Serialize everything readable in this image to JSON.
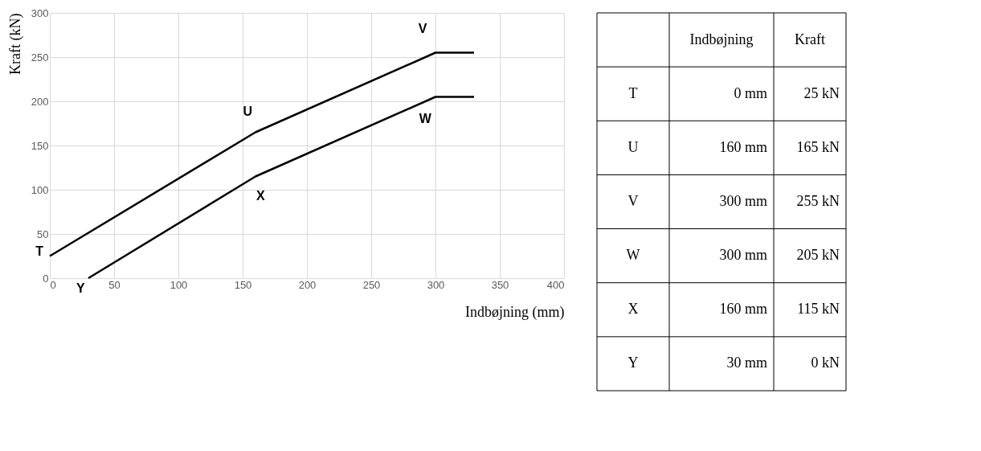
{
  "chart_data": [
    {
      "type": "line",
      "xlabel": "Indbøjning (mm)",
      "ylabel": "Kraft (kN)",
      "xlim": [
        0,
        400
      ],
      "ylim": [
        0,
        300
      ],
      "xticks": [
        0,
        50,
        100,
        150,
        200,
        250,
        300,
        350,
        400
      ],
      "yticks": [
        0,
        50,
        100,
        150,
        200,
        250,
        300
      ],
      "grid": true,
      "line_style": "solid",
      "series": [
        {
          "color": "#000000",
          "x": [
            0,
            160,
            300,
            330
          ],
          "values": [
            25,
            165,
            255,
            255
          ]
        },
        {
          "color": "#000000",
          "x": [
            30,
            160,
            300,
            330
          ],
          "values": [
            0,
            115,
            205,
            205
          ]
        }
      ],
      "annotations": [
        {
          "text": "T",
          "x": 0,
          "y": 25
        },
        {
          "text": "U",
          "x": 160,
          "y": 165
        },
        {
          "text": "V",
          "x": 300,
          "y": 255
        },
        {
          "text": "W",
          "x": 300,
          "y": 205
        },
        {
          "text": "X",
          "x": 160,
          "y": 115
        },
        {
          "text": "Y",
          "x": 30,
          "y": 0
        }
      ]
    },
    {
      "type": "other",
      "categories": [
        null,
        "Indbøjning",
        "Kraft"
      ],
      "y_categories": [
        "T",
        "U",
        "V",
        "W",
        "X",
        "Y"
      ],
      "cell_labels": [
        [
          "0 mm",
          "25 kN"
        ],
        [
          "160 mm",
          "165 kN"
        ],
        [
          "300 mm",
          "255 kN"
        ],
        [
          "300 mm",
          "205 kN"
        ],
        [
          "160 mm",
          "115 kN"
        ],
        [
          "30 mm",
          "0 kN"
        ]
      ]
    }
  ]
}
